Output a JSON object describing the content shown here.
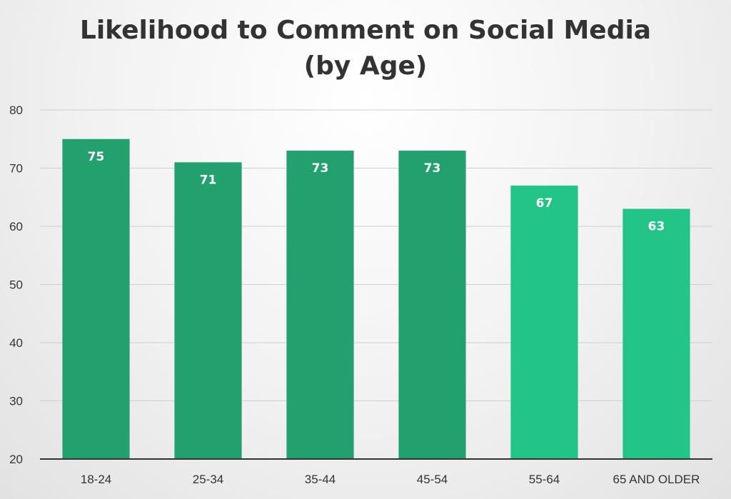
{
  "chart_data": {
    "type": "bar",
    "title_line1": "Likelihood to Comment on Social Media",
    "title_line2": "(by Age)",
    "xlabel": "",
    "ylabel": "",
    "categories": [
      "18-24",
      "25-34",
      "35-44",
      "45-54",
      "55-64",
      "65 AND OLDER"
    ],
    "values": [
      75,
      71,
      73,
      73,
      67,
      63
    ],
    "bar_colors": [
      "#22a06e",
      "#22a06e",
      "#22a06e",
      "#22a06e",
      "#22c487",
      "#22c487"
    ],
    "ylim": [
      20,
      80
    ],
    "yticks": [
      20,
      30,
      40,
      50,
      60,
      70,
      80
    ],
    "grid": true,
    "legend": "none",
    "data_labels": true
  }
}
